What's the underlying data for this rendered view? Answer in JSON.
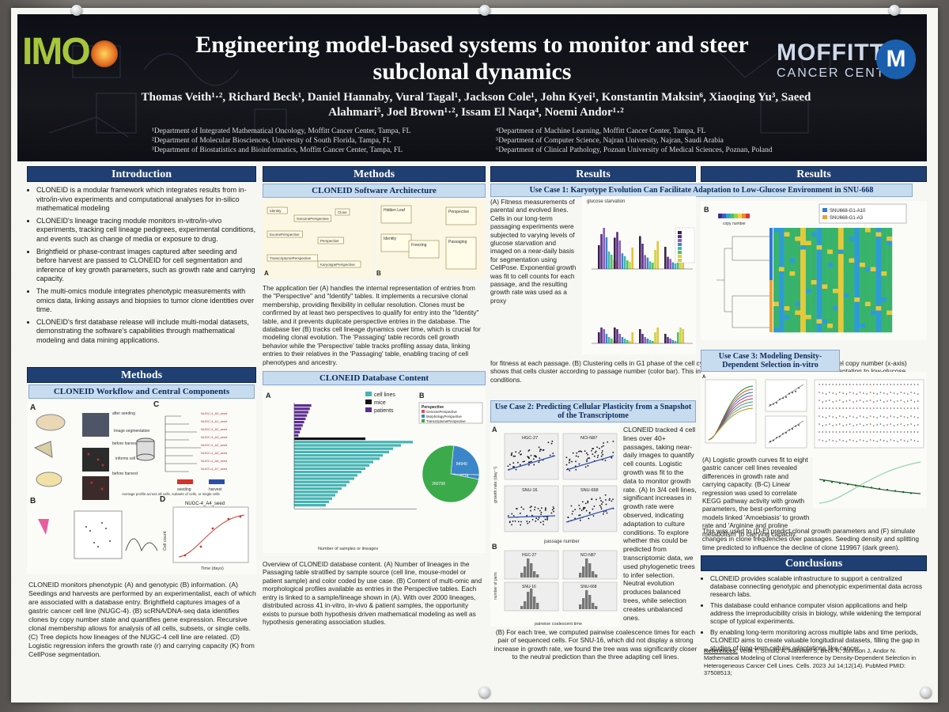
{
  "poster": {
    "title": "Engineering model-based systems to monitor and steer subclonal dynamics",
    "authors": "Thomas Veith¹·², Richard Beck¹, Daniel Hannaby, Vural Tagal¹, Jackson Cole¹, John Kyei¹, Konstantin Maksin⁶, Xiaoqing Yu³, Saeed Alahmari⁵, Joel Brown¹·², Issam El Naqa⁴, Noemi Andor¹·²",
    "affiliations": [
      "¹Department of Integrated Mathematical Oncology, Moffitt Cancer Center, Tampa, FL",
      "⁴Department of Machine Learning, Moffitt Cancer Center, Tampa, FL",
      "²Department of Molecular Biosciences, University of South Florida, Tampa, FL",
      "⁵Department of Computer Science, Najran University, Najran, Saudi Arabia",
      "³Department of Biostatistics and Bioinformatics, Moffitt Cancer Center, Tampa, FL",
      "⁶Department of Clinical Pathology, Poznan University of Medical Sciences, Poznan, Poland"
    ],
    "logo_left": "IMO",
    "logo_right_name": "MOFFITT",
    "logo_right_sub": "CANCER CENTER",
    "logo_right_mark": "M"
  },
  "introduction": {
    "heading": "Introduction",
    "bullets": [
      "CLONEID is a modular framework which integrates results from in-vitro/in-vivo experiments and computational analyses for in-silico mathematical modeling",
      "CLONEID's lineage tracing module monitors in-vitro/in-vivo experiments, tracking cell lineage pedigrees, experimental conditions, and events such as change of media or exposure to drug.",
      "Brightfield or phase-contrast images captured after seeding and before harvest are passed to CLONEID for cell segmentation and inference of key growth parameters, such as growth rate and carrying capacity.",
      "The multi-omics module integrates phenotypic measurements with omics data, linking assays and biopsies to tumor clone identities over time.",
      "CLONEID's first database release will include multi-modal datasets, demonstrating the software's capabilities through mathematical modeling and data mining applications."
    ]
  },
  "methods_left": {
    "heading": "Methods",
    "sub": "CLONEID Workflow and Central Components",
    "fig_labels": [
      "A",
      "B",
      "C",
      "D"
    ],
    "fig_texts": [
      "after seeding",
      "before harvest",
      "before harvest",
      "Image segmentation",
      "informs cell counts",
      "Average profile across all cells, subsets of cells, or single cells",
      "seeding",
      "harvest",
      "NUGC-4_A4_seed",
      "Cell count",
      "Time (days)"
    ],
    "caption": "CLONEID monitors phenotypic (A) and genotypic (B) information. (A) Seedings and harvests are performed by an experimentalist, each of which are associated with a database entry. Brightfield captures images of a gastric cancer cell line (NUGC-4). (B) scRNA/DNA-seq data identifies clones by copy number state and quantifies gene expression. Recursive clonal membership allows for analysis of all cells, subsets, or single cells. (C) Tree depicts how lineages of the NUGC-4 cell line are related. (D) Logistic regression infers the growth rate (r) and carrying capacity (K) from CellPose segmentation."
  },
  "methods_mid": {
    "heading": "Methods",
    "sub": "CLONEID Software Architecture",
    "arch_boxes_a": [
      "Identity",
      "GenomePerspective",
      "Clone",
      "ExomePerspective",
      "Perspective",
      "TranscriptomePerspective",
      "KaryotypePerspective"
    ],
    "arch_boxes_b": [
      "Hidden Leaf",
      "Perspective",
      "Identity",
      "Freezing",
      "Passaging"
    ],
    "text": "The application tier (A) handles the internal representation of entries from the \"Perspective\" and \"Identify\" tables. It implements a recursive clonal membership, providing flexibility in cellular resolution. Clones must be confirmed by at least two perspectives to qualify for entry into the \"Identity\" table, and it prevents duplicate perspective entries in the database. The database tier (B) tracks cell lineage dynamics over time, which is crucial for modeling clonal evolution. The 'Passaging' table records cell growth behavior while the 'Perspective' table tracks profiling assay data, linking entries to their relatives in the 'Passaging' table, enabling tracing of cell phenotypes and ancestry.",
    "db_sub": "CLONEID Database Content",
    "db_legend": [
      "cell lines",
      "mice",
      "patients"
    ],
    "db_xlabel": "Number of samples or lineages",
    "pie_legend_title": "Perspective",
    "pie_legend": [
      "GenomePerspective",
      "MorphologyPerspective",
      "TranscriptomePerspective"
    ],
    "pie_values": [
      "9114",
      "84940",
      "260799"
    ],
    "db_caption": "Overview of CLONEID database content. (A) Number of lineages in the Passaging table stratified by sample source (cell line, mouse-model or patient sample) and color coded by use case. (B) Content of multi-omic and morphological profiles available as entries in the Perspective tables. Each entry is linked to a sample/lineage shown in (A). With over 2000 lineages, distributed across 41 in-vitro, in-vivo & patient samples, the opportunity exists to pursue both hypothesis driven mathematical modeling as well as hypothesis generating association studies."
  },
  "results1": {
    "heading": "Results",
    "uc1": "Use Case 1: Karyotype Evolution Can Facilitate Adaptation to Low-Glucose Environment in SNU-668",
    "uc1_text_a": "(A) Fitness measurements of parental and evolved lines. Cells in our long-term passaging experiments were subjected to varying levels of glucose starvation and imaged on a near-daily basis for segmentation using CellPose. Exponential growth was fit to cell counts for each passage, and the resulting growth rate was used as a proxy",
    "uc1_text_b": "for fitness at each passage. (B) Clustering cells in G1 phase of the cell cycle (y- axis) according to their chromosome level copy number (x-axis) shows that cells cluster according to passage number (color bar). This indicates copy number evolution may facilitate adaptation to low-glucose conditions.",
    "uc1_chart_title": "glucose starvation",
    "uc2": "Use Case 2: Predicting Cellular Plasticity from a Snapshot of the Transcriptome",
    "uc2_panels": [
      "HGC-27",
      "NCI-N87",
      "SNU-16",
      "SNU-668"
    ],
    "uc2_ylabel": "growth rate (day⁻¹)",
    "uc2_xlabel": "passage number",
    "uc2_hist_ylabel": "number of pairs",
    "uc2_hist_xlabel": "pairwise coalescent time",
    "uc2_text": "CLONEID tracked 4 cell lines over 40+ passages, taking near-daily images to quantify cell counts. Logistic growth was fit to the data to monitor growth rate. (A) In 3/4 cell lines, significant increases in growth rate were observed, indicating adaptation to culture conditions. To explore whether this could be predicted from transcriptomic data, we used phylogenetic trees to infer selection. Neutral evolution produces balanced trees, while selection creates unbalanced ones.",
    "uc2_caption": "(B) For each tree, we computed pairwise coalescence times for each pair of sequenced cells. For SNU-16, which did not display a strong increase in growth rate, we found the tree was was significantly closer to the neutral prediction than the three adapting cell lines."
  },
  "results2": {
    "heading": "Results",
    "heatmap_legend": [
      "SNU668-G1-A10",
      "SNU668-G1-A3"
    ],
    "heatmap_cbar_label": "copy number",
    "uc3": "Use Case 3: Modeling Density-Dependent Selection in-vitro",
    "uc3_text": "(A) Logistic growth curves fit to eight gastric cancer cell lines revealed differences in growth rate and carrying capacity. (B-C) Linear regression was used to correlate KEGG pathway activity with growth parameters, the best-performing models linked 'Amoebiasis' to growth rate and 'Arginine and proline metabolism' to carrying capacity.",
    "uc3_text2": "This was used to (D-E) predict clonal growth parameters and (F) simulate changes in clone frequencies over passages. Seeding density and splitting time predicted to influence the decline of clone 119967 (dark green).",
    "conclusions_heading": "Conclusions",
    "conclusions": [
      "CLONEID provides scalable infrastructure to support a centralized database connecting genotypic and phenotypic experimental data across research labs.",
      "This database could enhance computer vision applications and help address the irreproducibility crisis in biology, while widening the temporal scope of typical experiments.",
      "By enabling long-term monitoring across multiple labs and time periods, CLONEID aims to create valuable longitudinal datasets, filling the gap in studies of long-term cellular adaptations like cancer."
    ],
    "references_label": "References:",
    "references": "Veith T, Schultz A, Alahmari S, Beck R, Johnson J, Andor N. Mathematical Modeling of Clonal Interference by Density-Dependent Selection in Heterogeneous Cancer Cell Lines. Cells. 2023 Jul 14;12(14). PubMed PMID: 37508513;"
  },
  "colors": {
    "banner": "#111318",
    "section_head": "#1f3f73",
    "sub_head": "#c8dcf0",
    "bar_purple": "#5c2d91",
    "bar_teal": "#45b4b4",
    "heat_green": "#38b36b"
  }
}
